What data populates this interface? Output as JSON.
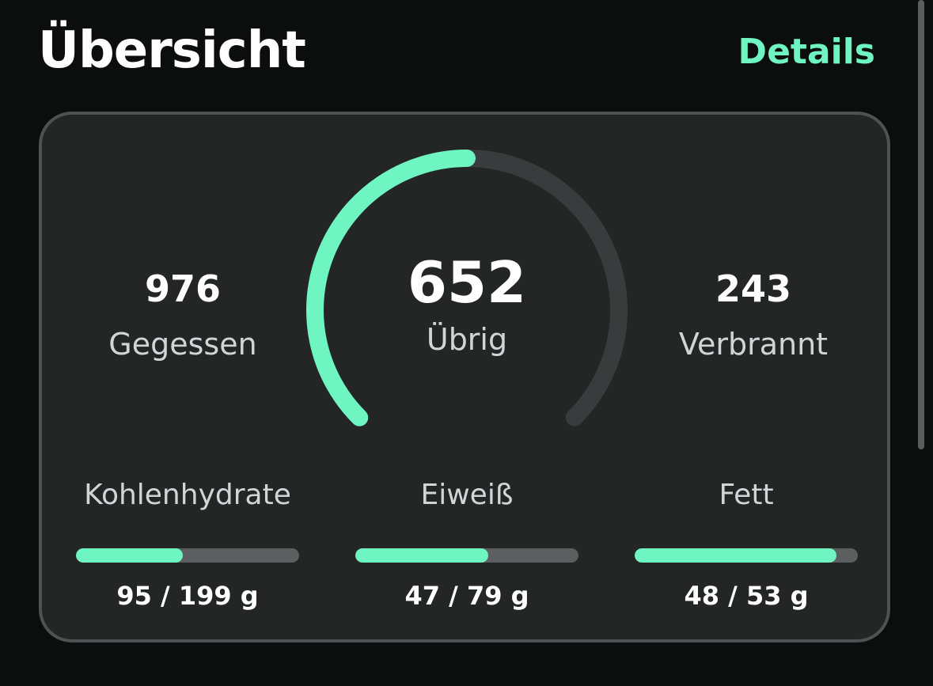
{
  "header": {
    "title": "Übersicht",
    "details_label": "Details"
  },
  "summary": {
    "eaten": {
      "value": "976",
      "label": "Gegessen"
    },
    "remaining": {
      "value": "652",
      "label": "Übrig"
    },
    "burned": {
      "value": "243",
      "label": "Verbrannt"
    },
    "gauge_fraction": 0.5
  },
  "macros": [
    {
      "label": "Kohlenhydrate",
      "value": "95 / 199 g",
      "current": 95,
      "goal": 199
    },
    {
      "label": "Eiweiß",
      "value": "47 / 79 g",
      "current": 47,
      "goal": 79
    },
    {
      "label": "Fett",
      "value": "48 / 53 g",
      "current": 48,
      "goal": 53
    }
  ],
  "colors": {
    "accent": "#6ef5c1",
    "track": "#3a3b3c",
    "card": "#242626",
    "background": "#0c0d0d"
  }
}
